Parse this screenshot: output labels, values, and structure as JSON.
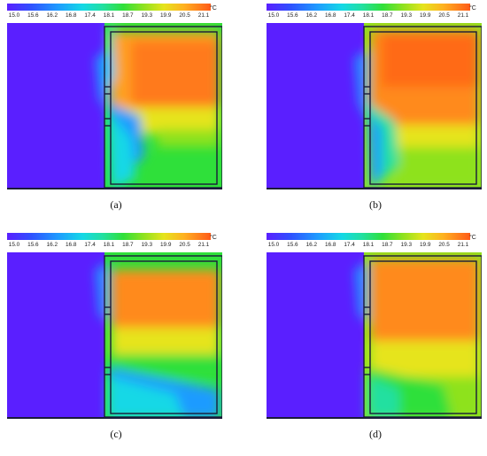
{
  "colorbar": {
    "ticks": [
      "15.0",
      "15.6",
      "16.2",
      "16.8",
      "17.4",
      "18.1",
      "18.7",
      "19.3",
      "19.9",
      "20.5",
      "21.1"
    ],
    "unit": "°C",
    "gradient": [
      "#5a1fff",
      "#2f52ff",
      "#1e9bff",
      "#14d8e6",
      "#22e0a0",
      "#2fe03a",
      "#8ee21f",
      "#e6e41c",
      "#ffb020",
      "#ff7a1a",
      "#ff5a18"
    ]
  },
  "panels": [
    {
      "caption": "(a)"
    },
    {
      "caption": "(b)"
    },
    {
      "caption": "(c)"
    },
    {
      "caption": "(d)"
    }
  ]
}
